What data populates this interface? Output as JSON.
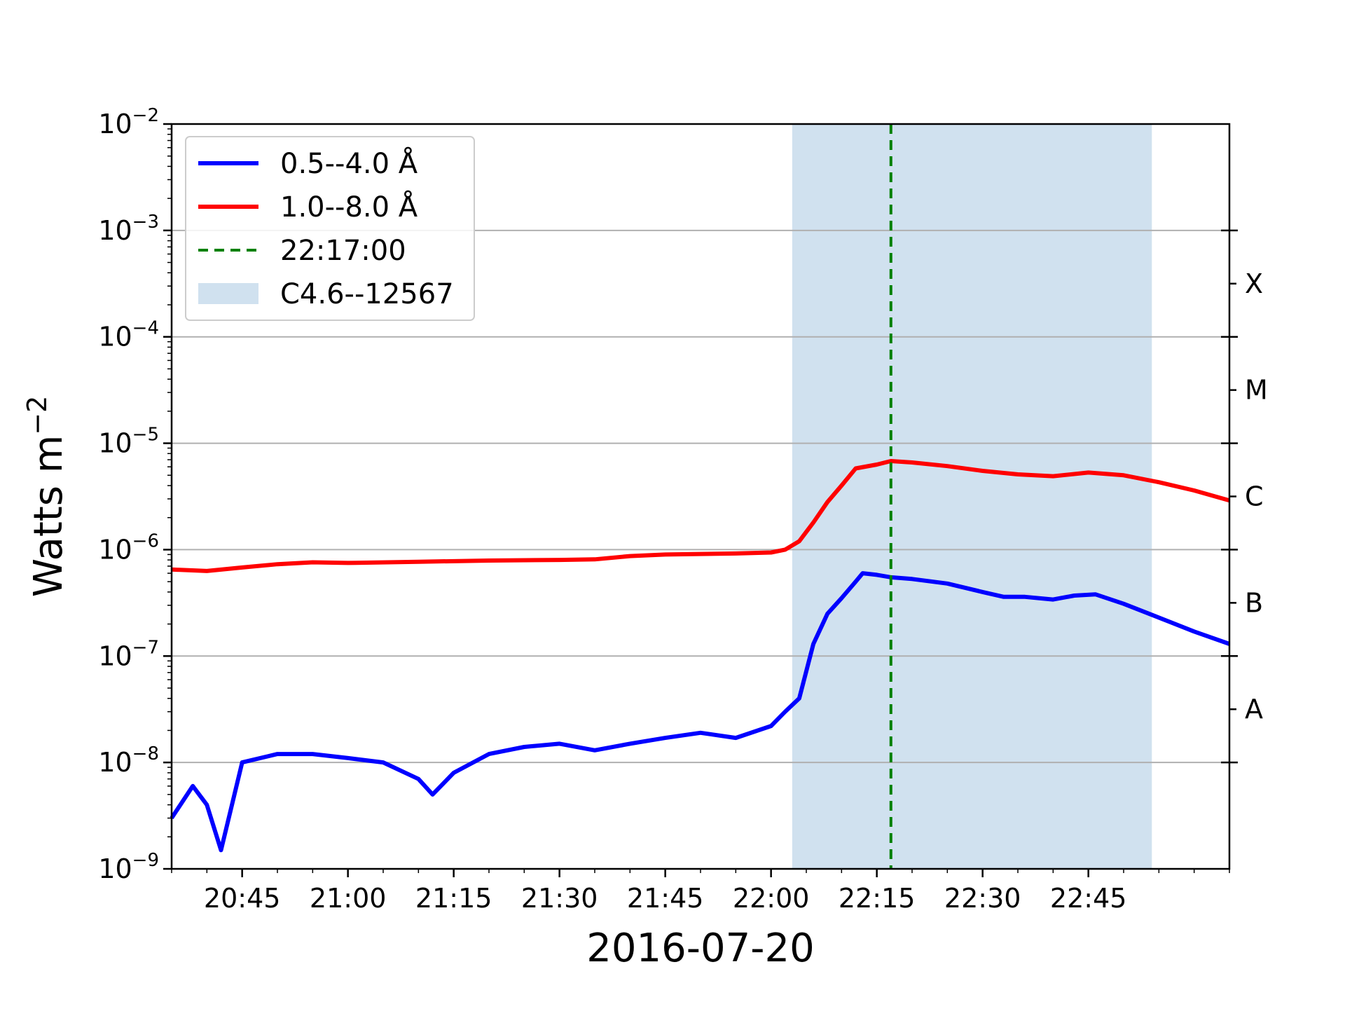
{
  "chart_data": {
    "type": "line",
    "title": "",
    "xlabel": "2016-07-20",
    "ylabel": "Watts m",
    "ylabel_superscript": "−2",
    "yscale": "log",
    "ylim": [
      1e-09,
      0.01
    ],
    "xlim": [
      "20:35",
      "23:05"
    ],
    "grid": "horizontal",
    "legend_placement": "top-left",
    "x_tick_labels": [
      "20:45",
      "21:00",
      "21:15",
      "21:30",
      "21:45",
      "22:00",
      "22:15",
      "22:30",
      "22:45"
    ],
    "y_tick_labels": [
      {
        "base": "10",
        "exp": "−2"
      },
      {
        "base": "10",
        "exp": "−3"
      },
      {
        "base": "10",
        "exp": "−4"
      },
      {
        "base": "10",
        "exp": "−5"
      },
      {
        "base": "10",
        "exp": "−6"
      },
      {
        "base": "10",
        "exp": "−7"
      },
      {
        "base": "10",
        "exp": "−8"
      },
      {
        "base": "10",
        "exp": "−9"
      }
    ],
    "flare_classes": [
      "X",
      "M",
      "C",
      "B",
      "A"
    ],
    "series": [
      {
        "name": "0.5--4.0 Å",
        "color": "#0000ff",
        "x": [
          "20:35",
          "20:38",
          "20:40",
          "20:42",
          "20:45",
          "20:50",
          "20:55",
          "21:00",
          "21:05",
          "21:10",
          "21:12",
          "21:15",
          "21:20",
          "21:25",
          "21:30",
          "21:35",
          "21:40",
          "21:45",
          "21:50",
          "21:55",
          "22:00",
          "22:02",
          "22:04",
          "22:06",
          "22:08",
          "22:10",
          "22:12",
          "22:13",
          "22:15",
          "22:17",
          "22:20",
          "22:25",
          "22:30",
          "22:33",
          "22:36",
          "22:40",
          "22:43",
          "22:46",
          "22:50",
          "22:55",
          "23:00",
          "23:05"
        ],
        "y": [
          3e-09,
          6e-09,
          4e-09,
          1.5e-09,
          1e-08,
          1.2e-08,
          1.2e-08,
          1.1e-08,
          1e-08,
          7e-09,
          5e-09,
          8e-09,
          1.2e-08,
          1.4e-08,
          1.5e-08,
          1.3e-08,
          1.5e-08,
          1.7e-08,
          1.9e-08,
          1.7e-08,
          2.2e-08,
          3e-08,
          4e-08,
          1.3e-07,
          2.5e-07,
          3.5e-07,
          5e-07,
          6e-07,
          5.8e-07,
          5.5e-07,
          5.3e-07,
          4.8e-07,
          4e-07,
          3.6e-07,
          3.6e-07,
          3.4e-07,
          3.7e-07,
          3.8e-07,
          3.1e-07,
          2.3e-07,
          1.7e-07,
          1.3e-07
        ]
      },
      {
        "name": "1.0--8.0 Å",
        "color": "#ff0000",
        "x": [
          "20:35",
          "20:40",
          "20:45",
          "20:50",
          "20:55",
          "21:00",
          "21:10",
          "21:20",
          "21:30",
          "21:35",
          "21:40",
          "21:45",
          "21:50",
          "21:55",
          "22:00",
          "22:02",
          "22:04",
          "22:06",
          "22:08",
          "22:10",
          "22:12",
          "22:15",
          "22:17",
          "22:20",
          "22:25",
          "22:30",
          "22:35",
          "22:40",
          "22:45",
          "22:50",
          "22:55",
          "23:00",
          "23:05"
        ],
        "y": [
          6.5e-07,
          6.3e-07,
          6.8e-07,
          7.3e-07,
          7.6e-07,
          7.5e-07,
          7.7e-07,
          7.9e-07,
          8e-07,
          8.1e-07,
          8.7e-07,
          9e-07,
          9.1e-07,
          9.2e-07,
          9.4e-07,
          1e-06,
          1.2e-06,
          1.8e-06,
          2.8e-06,
          4e-06,
          5.8e-06,
          6.3e-06,
          6.8e-06,
          6.6e-06,
          6.1e-06,
          5.5e-06,
          5.1e-06,
          4.9e-06,
          5.3e-06,
          5e-06,
          4.3e-06,
          3.6e-06,
          2.9e-06
        ]
      }
    ],
    "vline": {
      "x": "22:17:00",
      "label": "22:17:00",
      "color": "#008000",
      "style": "dashed"
    },
    "span": {
      "from": "22:03",
      "to": "22:54",
      "label": "C4.6--12567",
      "color": "#d0e1ef"
    }
  }
}
